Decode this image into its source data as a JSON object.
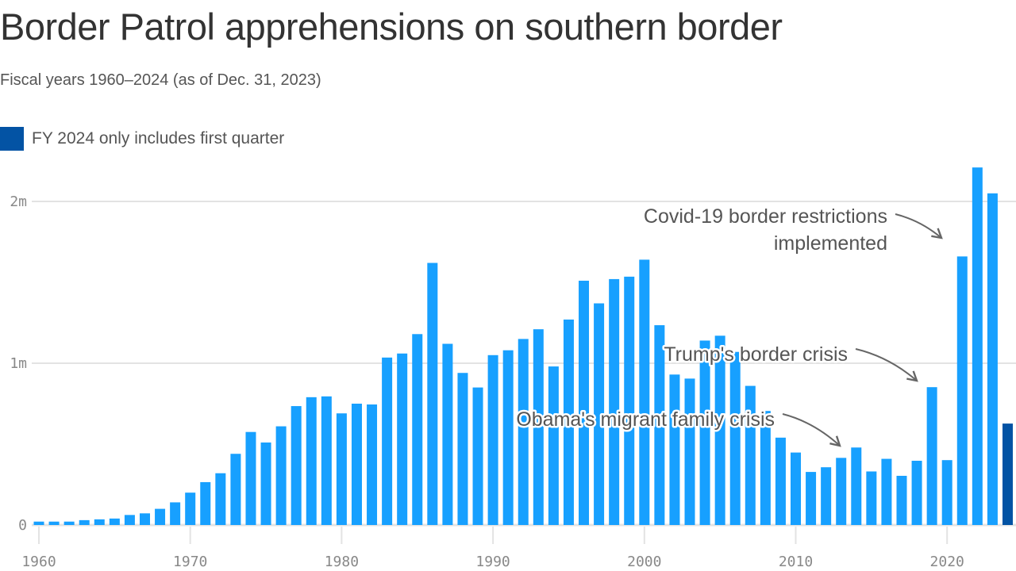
{
  "header": {
    "title": "Border Patrol apprehensions on southern border",
    "subtitle": "Fiscal years 1960–2024 (as of Dec. 31, 2023)"
  },
  "legend": {
    "label": "FY 2024 only includes first quarter",
    "color": "#0353a4"
  },
  "colors": {
    "bar": "#17a0ff",
    "bar_highlight": "#0353a4",
    "grid": "#e3e3e3",
    "annotation_arrow": "#666666"
  },
  "chart_data": {
    "type": "bar",
    "title": "Border Patrol apprehensions on southern border",
    "subtitle": "Fiscal years 1960–2024 (as of Dec. 31, 2023)",
    "xlabel": "",
    "ylabel": "",
    "ylim": [
      0,
      2250000
    ],
    "grid": true,
    "y_ticks": [
      {
        "value": 0,
        "label": "0"
      },
      {
        "value": 1000000,
        "label": "1m"
      },
      {
        "value": 2000000,
        "label": "2m"
      }
    ],
    "x_ticks": [
      {
        "value": 1960,
        "label": "1960"
      },
      {
        "value": 1970,
        "label": "1970"
      },
      {
        "value": 1980,
        "label": "1980"
      },
      {
        "value": 1990,
        "label": "1990"
      },
      {
        "value": 2000,
        "label": "2000"
      },
      {
        "value": 2010,
        "label": "2010"
      },
      {
        "value": 2020,
        "label": "2020"
      }
    ],
    "x": [
      1960,
      1961,
      1962,
      1963,
      1964,
      1965,
      1966,
      1967,
      1968,
      1969,
      1970,
      1971,
      1972,
      1973,
      1974,
      1975,
      1976,
      1977,
      1978,
      1979,
      1980,
      1981,
      1982,
      1983,
      1984,
      1985,
      1986,
      1987,
      1988,
      1989,
      1990,
      1991,
      1992,
      1993,
      1994,
      1995,
      1996,
      1997,
      1998,
      1999,
      2000,
      2001,
      2002,
      2003,
      2004,
      2005,
      2006,
      2007,
      2008,
      2009,
      2010,
      2011,
      2012,
      2013,
      2014,
      2015,
      2016,
      2017,
      2018,
      2019,
      2020,
      2021,
      2022,
      2023,
      2024
    ],
    "values": [
      21000,
      21000,
      21000,
      30000,
      35000,
      40000,
      62000,
      72000,
      100000,
      140000,
      200000,
      265000,
      320000,
      440000,
      575000,
      510000,
      610000,
      735000,
      790000,
      795000,
      690000,
      750000,
      745000,
      1035000,
      1060000,
      1180000,
      1620000,
      1120000,
      940000,
      850000,
      1050000,
      1080000,
      1150000,
      1210000,
      980000,
      1270000,
      1510000,
      1370000,
      1520000,
      1535000,
      1640000,
      1235000,
      930000,
      905000,
      1140000,
      1170000,
      1070000,
      860000,
      705000,
      540000,
      448000,
      328000,
      357000,
      415000,
      479000,
      331000,
      409000,
      304000,
      397000,
      852000,
      401000,
      1660000,
      2210000,
      2050000,
      627000
    ],
    "highlight": [
      2024
    ],
    "annotations": [
      {
        "text_lines": [
          "Covid-19 border restrictions",
          "implemented"
        ],
        "target_year": 2020
      },
      {
        "text_lines": [
          "Trump's border crisis"
        ],
        "target_year": 2019
      },
      {
        "text_lines": [
          "Obama's migrant family crisis"
        ],
        "target_year": 2014
      }
    ],
    "legend_position": "top-left"
  }
}
